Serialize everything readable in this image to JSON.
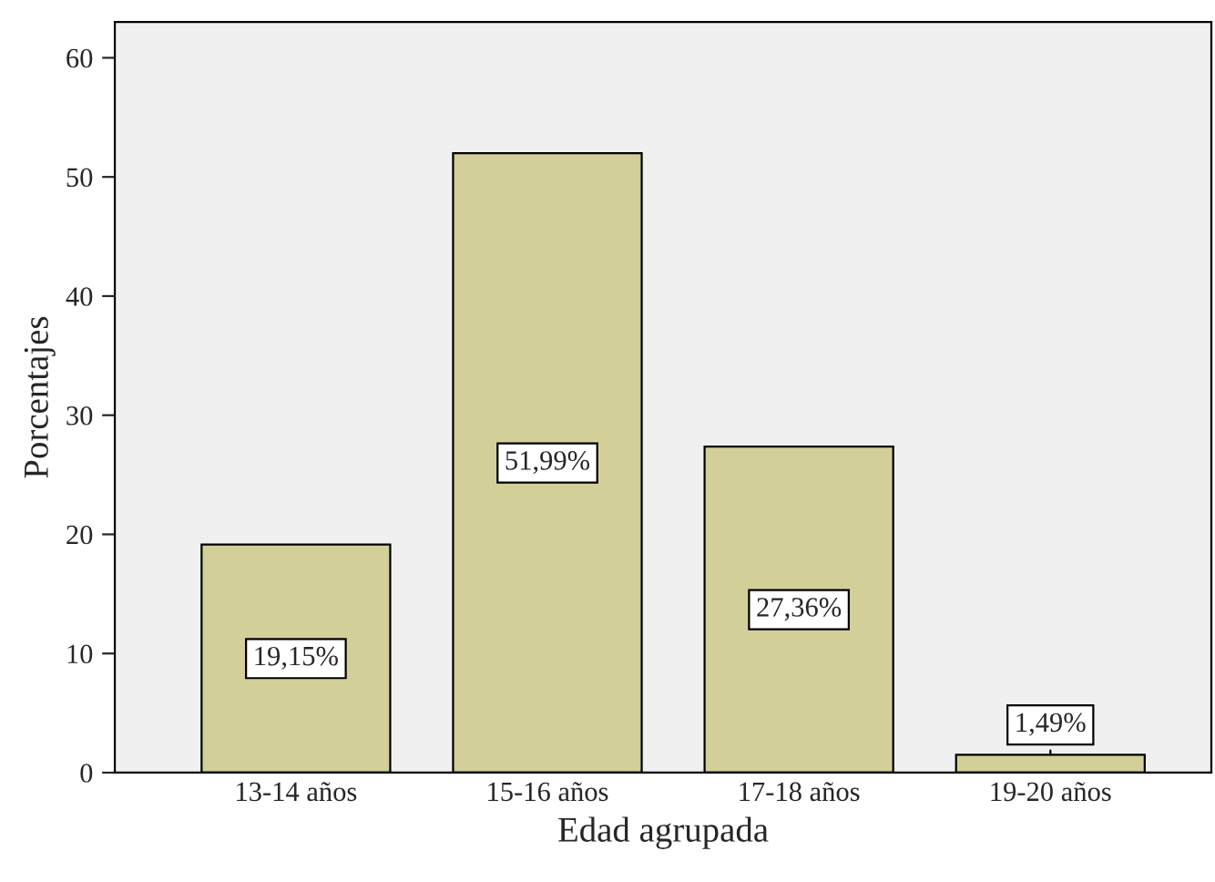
{
  "chart_data": {
    "type": "bar",
    "xlabel": "Edad agrupada",
    "ylabel": "Porcentajes",
    "categories": [
      "13-14 años",
      "15-16 años",
      "17-18 años",
      "19-20 años"
    ],
    "values": [
      19.15,
      51.99,
      27.36,
      1.49
    ],
    "value_labels": [
      "19,15%",
      "51,99%",
      "27,36%",
      "1,49%"
    ],
    "color": "#d3cf98",
    "ylim": [
      0,
      63
    ],
    "yticks": [
      0,
      10,
      20,
      30,
      40,
      50,
      60
    ],
    "grid": false,
    "legend": false
  }
}
